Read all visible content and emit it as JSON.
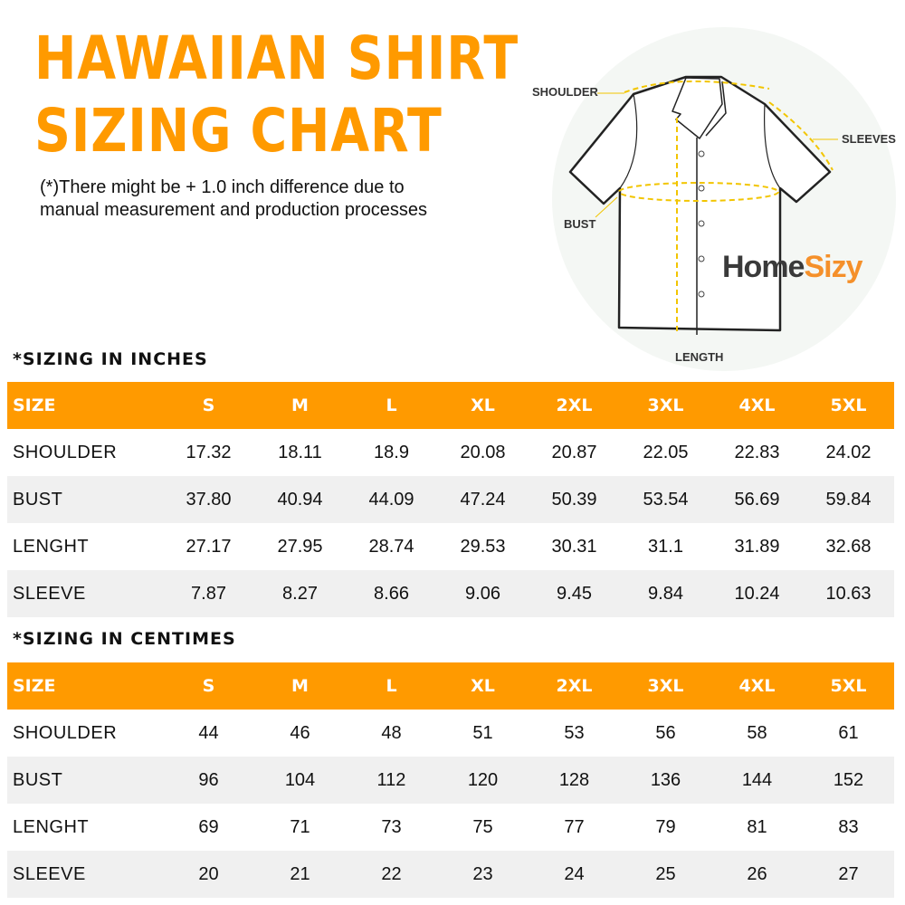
{
  "title_line1": "HAWAIIAN SHIRT",
  "title_line2": "SIZING CHART",
  "note_line1": "(*)There might be + 1.0 inch difference due to",
  "note_line2": "manual measurement and production processes",
  "diagram": {
    "shoulder": "SHOULDER",
    "sleeves": "SLEEVES",
    "bust": "BUST",
    "length": "LENGTH"
  },
  "brand": {
    "part1": "Home",
    "part2": "Sizy"
  },
  "colors": {
    "accent": "#ff9a00",
    "row_alt": "#f0f0f0"
  },
  "inches": {
    "heading": "*SIZING IN INCHES",
    "header": [
      "SIZE",
      "S",
      "M",
      "L",
      "XL",
      "2XL",
      "3XL",
      "4XL",
      "5XL"
    ],
    "rows": [
      [
        "SHOULDER",
        "17.32",
        "18.11",
        "18.9",
        "20.08",
        "20.87",
        "22.05",
        "22.83",
        "24.02"
      ],
      [
        "BUST",
        "37.80",
        "40.94",
        "44.09",
        "47.24",
        "50.39",
        "53.54",
        "56.69",
        "59.84"
      ],
      [
        "LENGHT",
        "27.17",
        "27.95",
        "28.74",
        "29.53",
        "30.31",
        "31.1",
        "31.89",
        "32.68"
      ],
      [
        "SLEEVE",
        "7.87",
        "8.27",
        "8.66",
        "9.06",
        "9.45",
        "9.84",
        "10.24",
        "10.63"
      ]
    ]
  },
  "cm": {
    "heading": "*SIZING IN CENTIMES",
    "header": [
      "SIZE",
      "S",
      "M",
      "L",
      "XL",
      "2XL",
      "3XL",
      "4XL",
      "5XL"
    ],
    "rows": [
      [
        "SHOULDER",
        "44",
        "46",
        "48",
        "51",
        "53",
        "56",
        "58",
        "61"
      ],
      [
        "BUST",
        "96",
        "104",
        "112",
        "120",
        "128",
        "136",
        "144",
        "152"
      ],
      [
        "LENGHT",
        "69",
        "71",
        "73",
        "75",
        "77",
        "79",
        "81",
        "83"
      ],
      [
        "SLEEVE",
        "20",
        "21",
        "22",
        "23",
        "24",
        "25",
        "26",
        "27"
      ]
    ]
  }
}
